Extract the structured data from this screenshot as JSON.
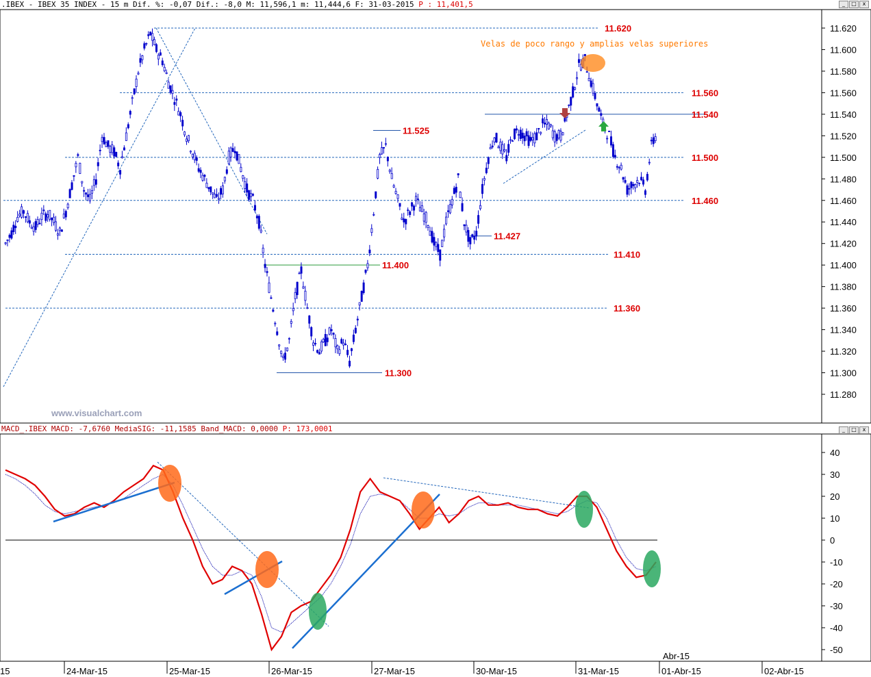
{
  "price_header": {
    "prefix": ".IBEX - IBEX 35 INDEX - 15 m Dif. %: -0,07 Dif.: -8,0 M: 11,596,1 m: 11,444,6 F: 31-03-2015",
    "price_label": "P : 11,401,5"
  },
  "macd_header": {
    "prefix": "MACD_.IBEX MACD: -7,6760 MediaSIG: -11,1585 Band_MACD: 0,0000",
    "price_label": "P: 173,0001"
  },
  "watermark": "www.visualchart.com",
  "window_buttons": [
    "_",
    "□",
    "x"
  ],
  "colors": {
    "up": "#0000cc",
    "down": "#0000cc",
    "macd": "#e00000",
    "signal": "#0000aa",
    "level_text": "#dd0000",
    "annotation": "#ff7a00",
    "dotted": "#2266bb",
    "orange_marker": "#ff6a1a",
    "green_marker": "#2aa860"
  },
  "chart_data": [
    {
      "type": "candlestick",
      "title": "IBEX 35 INDEX 15 m",
      "ylim": [
        11270,
        11635
      ],
      "y_ticks": [
        "11.620",
        "11.600",
        "11.580",
        "11.560",
        "11.540",
        "11.520",
        "11.500",
        "11.480",
        "11.460",
        "11.440",
        "11.420",
        "11.400",
        "11.380",
        "11.360",
        "11.340",
        "11.320",
        "11.300",
        "11.280"
      ],
      "x_labels": [
        "15",
        "24-Mar-15",
        "25-Mar-15",
        "26-Mar-15",
        "27-Mar-15",
        "30-Mar-15",
        "31-Mar-15",
        "01-Abr-15",
        "02-Abr-15"
      ],
      "x_sublabel": "Abr-15",
      "closes_path": [
        11420,
        11430,
        11445,
        11450,
        11440,
        11435,
        11445,
        11448,
        11440,
        11430,
        11450,
        11475,
        11500,
        11470,
        11460,
        11480,
        11520,
        11510,
        11505,
        11490,
        11520,
        11550,
        11580,
        11600,
        11615,
        11600,
        11590,
        11570,
        11555,
        11540,
        11520,
        11505,
        11490,
        11480,
        11470,
        11460,
        11470,
        11500,
        11510,
        11490,
        11470,
        11460,
        11440,
        11400,
        11370,
        11340,
        11310,
        11330,
        11370,
        11395,
        11360,
        11330,
        11320,
        11330,
        11340,
        11320,
        11330,
        11310,
        11340,
        11370,
        11400,
        11450,
        11500,
        11510,
        11480,
        11460,
        11440,
        11450,
        11460,
        11450,
        11440,
        11420,
        11410,
        11440,
        11460,
        11480,
        11440,
        11420,
        11430,
        11470,
        11500,
        11520,
        11510,
        11500,
        11520,
        11525,
        11520,
        11515,
        11520,
        11530,
        11530,
        11520,
        11520,
        11540,
        11560,
        11585,
        11590,
        11570,
        11550,
        11530,
        11520,
        11500,
        11490,
        11470,
        11475,
        11480,
        11470,
        11510,
        11525
      ],
      "levels": [
        {
          "label": "11.620",
          "value": 11620,
          "style": "dotted"
        },
        {
          "label": "11.560",
          "value": 11560,
          "style": "dotted"
        },
        {
          "label": "11.540",
          "value": 11540,
          "style": "solid"
        },
        {
          "label": "11.525",
          "value": 11525,
          "style": "solid"
        },
        {
          "label": "11.500",
          "value": 11500,
          "style": "dotted"
        },
        {
          "label": "11.460",
          "value": 11460,
          "style": "dotted"
        },
        {
          "label": "11.427",
          "value": 11427,
          "style": "solid"
        },
        {
          "label": "11.410",
          "value": 11410,
          "style": "dotted"
        },
        {
          "label": "11.400",
          "value": 11400,
          "style": "solid"
        },
        {
          "label": "11.360",
          "value": 11360,
          "style": "dotted"
        },
        {
          "label": "11.300",
          "value": 11300,
          "style": "solid"
        }
      ],
      "annotation": "Velas de poco rango y amplias velas superiores"
    },
    {
      "type": "line",
      "title": "MACD_.IBEX",
      "ylim": [
        -52,
        44
      ],
      "y_ticks": [
        "40",
        "30",
        "20",
        "10",
        "0",
        "-10",
        "-20",
        "-30",
        "-40",
        "-50"
      ],
      "series": [
        {
          "name": "MACD",
          "values": [
            32,
            30,
            28,
            25,
            20,
            14,
            11,
            12,
            15,
            17,
            15,
            18,
            22,
            25,
            28,
            34,
            32,
            22,
            10,
            0,
            -12,
            -20,
            -18,
            -12,
            -14,
            -20,
            -34,
            -50,
            -44,
            -33,
            -30,
            -28,
            -22,
            -16,
            -8,
            5,
            22,
            28,
            22,
            20,
            18,
            12,
            5,
            10,
            15,
            8,
            12,
            18,
            20,
            16,
            16,
            17,
            15,
            14,
            14,
            12,
            11,
            15,
            20,
            20,
            15,
            5,
            -5,
            -12,
            -17,
            -16,
            -10
          ]
        },
        {
          "name": "MediaSIG",
          "values": [
            30,
            28,
            25,
            21,
            16,
            13,
            12,
            13,
            14,
            15,
            16,
            17,
            19,
            22,
            25,
            28,
            30,
            25,
            16,
            6,
            -4,
            -12,
            -16,
            -16,
            -14,
            -16,
            -26,
            -40,
            -42,
            -38,
            -34,
            -30,
            -26,
            -20,
            -12,
            -2,
            12,
            20,
            21,
            20,
            18,
            14,
            10,
            10,
            12,
            11,
            12,
            15,
            17,
            17,
            16,
            16,
            16,
            15,
            14,
            13,
            12,
            13,
            16,
            18,
            17,
            10,
            0,
            -8,
            -13,
            -14,
            -12
          ]
        }
      ]
    }
  ]
}
